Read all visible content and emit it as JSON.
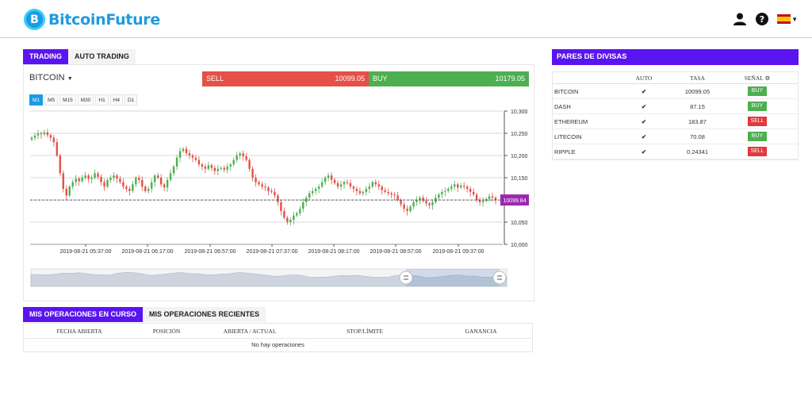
{
  "brand": {
    "name": "BitcoinFuture",
    "mark": "B"
  },
  "header_icons": [
    "user-icon",
    "help-icon",
    "spain-flag-icon"
  ],
  "colors": {
    "accent": "#5a14f0",
    "brand": "#1c9be0",
    "sell": "#e55047",
    "buy": "#4caf50",
    "price_tag": "#9c27b0"
  },
  "trading": {
    "tabs": [
      "TRADING",
      "AUTO TRADING"
    ],
    "symbol": "BITCOIN",
    "sell_label": "SELL",
    "sell_price": "10099.05",
    "buy_label": "BUY",
    "buy_price": "10179.05",
    "timeframes": [
      "M1",
      "M5",
      "M15",
      "M30",
      "H1",
      "H4",
      "D1"
    ],
    "current_price_tag": "10099.84"
  },
  "chart_data": {
    "type": "candlestick",
    "y_ticks": [
      "10,300",
      "10,250",
      "10,200",
      "10,150",
      "10,100",
      "10,050",
      "10,000"
    ],
    "x_ticks": [
      "2019-08-21 05:37:00",
      "2019-08-21 06:17:00",
      "2019-08-21 06:57:00",
      "2019-08-21 07:37:00",
      "2019-08-21 08:17:00",
      "2019-08-21 08:57:00",
      "2019-08-21 09:37:00"
    ],
    "ylim": [
      10000,
      10300
    ],
    "current_price": 10099.84,
    "closes": [
      10240,
      10245,
      10250,
      10248,
      10252,
      10246,
      10240,
      10230,
      10200,
      10160,
      10125,
      10110,
      10130,
      10140,
      10148,
      10142,
      10150,
      10155,
      10147,
      10150,
      10160,
      10152,
      10140,
      10130,
      10145,
      10150,
      10155,
      10148,
      10140,
      10130,
      10125,
      10120,
      10135,
      10150,
      10145,
      10130,
      10120,
      10125,
      10140,
      10155,
      10150,
      10135,
      10128,
      10145,
      10160,
      10175,
      10195,
      10210,
      10215,
      10205,
      10200,
      10195,
      10190,
      10180,
      10175,
      10170,
      10178,
      10172,
      10165,
      10170,
      10172,
      10168,
      10175,
      10180,
      10190,
      10200,
      10205,
      10198,
      10190,
      10170,
      10150,
      10140,
      10135,
      10130,
      10128,
      10120,
      10118,
      10110,
      10095,
      10075,
      10060,
      10050,
      10055,
      10065,
      10070,
      10080,
      10095,
      10105,
      10115,
      10120,
      10125,
      10130,
      10140,
      10150,
      10155,
      10145,
      10138,
      10130,
      10135,
      10140,
      10138,
      10130,
      10125,
      10120,
      10115,
      10118,
      10125,
      10130,
      10140,
      10135,
      10130,
      10122,
      10118,
      10115,
      10112,
      10110,
      10100,
      10090,
      10080,
      10075,
      10085,
      10095,
      10100,
      10105,
      10098,
      10092,
      10088,
      10095,
      10105,
      10112,
      10118,
      10120,
      10125,
      10130,
      10135,
      10128,
      10132,
      10130,
      10125,
      10118,
      10112,
      10100,
      10095,
      10098,
      10102,
      10108,
      10105,
      10100
    ]
  },
  "navigator": {
    "label": "chart-navigator"
  },
  "operations": {
    "tabs": [
      "MIS OPERACIONES EN CURSO",
      "MIS OPERACIONES RECIENTES"
    ],
    "columns": [
      "FECHA ABIERTA",
      "POSICIÓN",
      "ABIERTA / ACTUAL",
      "STOP/LÍMITE",
      "GANANCIA"
    ],
    "empty": "No hay operaciones"
  },
  "pairs": {
    "title": "PARES DE DIVISAS",
    "columns": [
      "",
      "AUTO",
      "TASA",
      "SEÑAL"
    ],
    "rows": [
      {
        "name": "BITCOIN",
        "rate": "10099.05",
        "signal": "BUY"
      },
      {
        "name": "DASH",
        "rate": "87.15",
        "signal": "BUY"
      },
      {
        "name": "ETHEREUM",
        "rate": "183.87",
        "signal": "SELL"
      },
      {
        "name": "LITECOIN",
        "rate": "70.08",
        "signal": "BUY"
      },
      {
        "name": "RIPPLE",
        "rate": "0.24341",
        "signal": "SELL"
      }
    ]
  }
}
